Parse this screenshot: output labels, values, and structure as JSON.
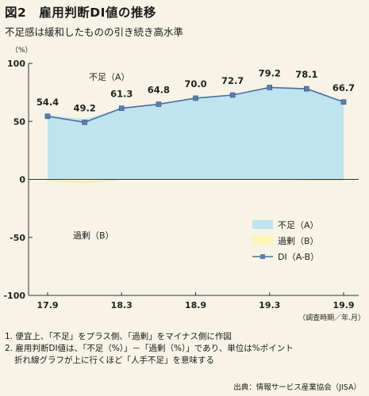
{
  "title": "図2　雇用判断DI値の推移",
  "subtitle": "不足感は緩和したものの引き続き高水準",
  "notes": {
    "line1": "1. 便宜上、「不足」をプラス側、「過剰」をマイナス側に作図",
    "line2": "2. 雇用判断DI値は、「不足（%）」－「過剰（%）」であり、単位は%ポイント",
    "line3": "折れ線グラフが上に行くほど「人手不足」を意味する"
  },
  "source": "出典：情報サービス産業協会（JISA）",
  "colors": {
    "shortage_fill": "#bfe3ef",
    "surplus_fill": "#fbf6b3",
    "di_line": "#4a6f9e",
    "di_marker": "#5a7fb0",
    "background": "#f7f3e6"
  },
  "chart_data": {
    "type": "area",
    "x": [
      "17.9",
      "17.12",
      "18.3",
      "18.6",
      "18.9",
      "18.12",
      "19.3",
      "19.6",
      "19.9"
    ],
    "x_tick_labels": [
      "17.9",
      "18.3",
      "18.9",
      "19.3",
      "19.9"
    ],
    "x_unit_label": "（調査時期／年.月）",
    "y_unit_label": "（%）",
    "ylim": [
      -100,
      100
    ],
    "y_ticks": [
      100,
      50,
      0,
      -50,
      -100
    ],
    "region_labels": {
      "shortage": "不足（A）",
      "surplus": "過剰（B）"
    },
    "series": [
      {
        "name": "不足（A）",
        "kind": "area",
        "values": [
          55.4,
          51.8,
          61.3,
          64.8,
          70.0,
          72.7,
          79.2,
          78.6,
          67.4
        ]
      },
      {
        "name": "過剰（B）",
        "kind": "area",
        "values": [
          -1.0,
          -2.6,
          0.0,
          0.0,
          0.0,
          0.0,
          0.0,
          -0.5,
          -0.7
        ]
      },
      {
        "name": "DI（A-B）",
        "kind": "line",
        "values": [
          54.4,
          49.2,
          61.3,
          64.8,
          70.0,
          72.7,
          79.2,
          78.1,
          66.7
        ]
      }
    ],
    "data_labels": [
      "54.4",
      "49.2",
      "61.3",
      "64.8",
      "70.0",
      "72.7",
      "79.2",
      "78.1",
      "66.7"
    ],
    "legend": {
      "placement": "bottom-right",
      "items": [
        "不足（A）",
        "過剰（B）",
        "DI（A-B）"
      ]
    }
  }
}
